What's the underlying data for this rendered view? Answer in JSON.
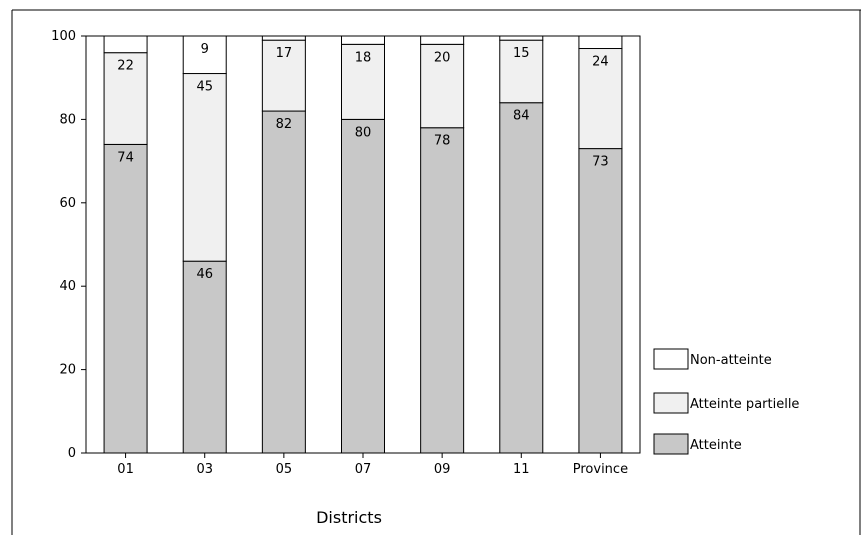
{
  "chart_data": {
    "type": "bar",
    "stacked": true,
    "title": "",
    "xlabel": "Districts",
    "ylabel": "",
    "ylim": [
      0,
      100
    ],
    "yticks": [
      0,
      20,
      40,
      60,
      80,
      100
    ],
    "grid": false,
    "legend_position": "bottom-right",
    "categories": [
      "01",
      "03",
      "05",
      "07",
      "09",
      "11",
      "Province"
    ],
    "series": [
      {
        "name": "Atteinte",
        "color": "#c8c8c8",
        "values": [
          74,
          46,
          82,
          80,
          78,
          84,
          73
        ],
        "labels": [
          "74",
          "46",
          "82",
          "80",
          "78",
          "84",
          "73"
        ]
      },
      {
        "name": "Atteinte partielle",
        "color": "#f0f0f0",
        "values": [
          22,
          45,
          17,
          18,
          20,
          15,
          24
        ],
        "labels": [
          "22",
          "45",
          "17",
          "18",
          "20",
          "15",
          "24"
        ]
      },
      {
        "name": "Non-atteinte",
        "color": "#ffffff",
        "values": [
          4,
          9,
          1,
          2,
          2,
          1,
          3
        ],
        "labels": [
          "",
          "9",
          "",
          "",
          "",
          "",
          ""
        ]
      }
    ],
    "legend_order": [
      "Non-atteinte",
      "Atteinte partielle",
      "Atteinte"
    ]
  }
}
